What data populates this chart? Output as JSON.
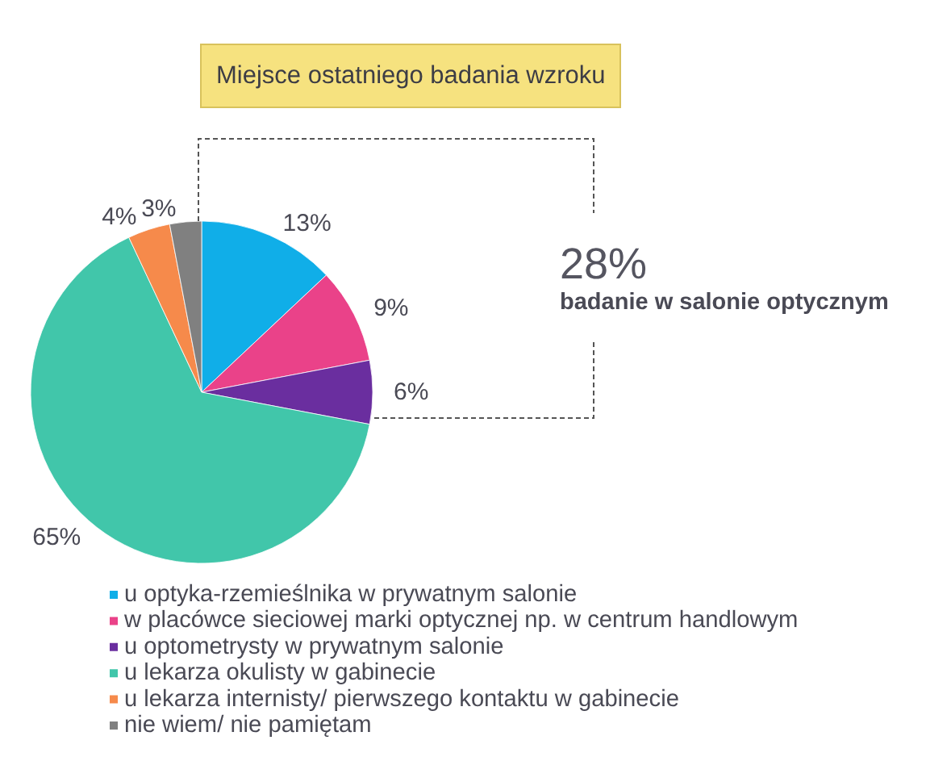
{
  "chart_data": {
    "type": "pie",
    "title": "Miejsce ostatniego badania wzroku",
    "categories": [
      "u optyka-rzemieślnika w prywatnym salonie",
      "w placówce sieciowej marki optycznej np. w centrum handlowym",
      "u optometrysty w prywatnym salonie",
      "u lekarza okulisty w gabinecie",
      "u lekarza internisty/ pierwszego kontaktu w gabinecie",
      "nie wiem/ nie pamiętam"
    ],
    "values": [
      13,
      9,
      6,
      65,
      4,
      3
    ],
    "colors": [
      "#10aee8",
      "#ea4289",
      "#6a2e9f",
      "#41c6aa",
      "#f68a4b",
      "#808080"
    ],
    "value_labels": [
      "13%",
      "9%",
      "6%",
      "65%",
      "4%",
      "3%"
    ],
    "legend": "bottom",
    "annotations": [
      "28%",
      "badanie w salonie optycznym"
    ]
  }
}
